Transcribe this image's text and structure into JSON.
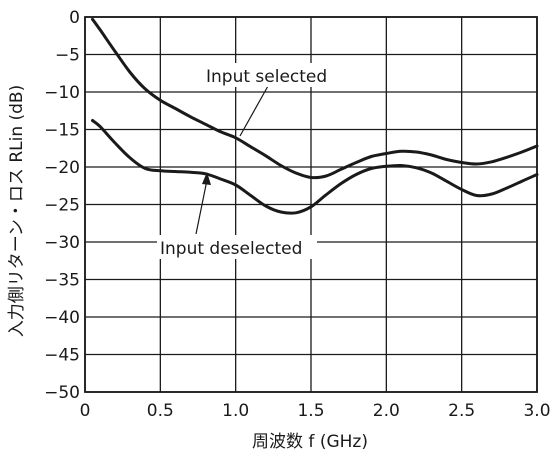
{
  "chart_data": {
    "type": "line",
    "xlabel": "周波数 f (GHz)",
    "ylabel": "入力側リターン・ロス RLin (dB)",
    "xlim": [
      0,
      3.0
    ],
    "ylim": [
      -50,
      0
    ],
    "xticks": [
      "0",
      "0.5",
      "1.0",
      "1.5",
      "2.0",
      "2.5",
      "3.0"
    ],
    "yticks": [
      "0",
      "−5",
      "−10",
      "−15",
      "−20",
      "−25",
      "−30",
      "−35",
      "−40",
      "−45",
      "−50"
    ],
    "grid": true,
    "series": [
      {
        "name": "Input selected",
        "x": [
          0.05,
          0.1,
          0.2,
          0.3,
          0.4,
          0.5,
          0.6,
          0.7,
          0.8,
          0.9,
          1.0,
          1.1,
          1.2,
          1.3,
          1.4,
          1.5,
          1.6,
          1.7,
          1.8,
          1.9,
          2.0,
          2.1,
          2.2,
          2.3,
          2.4,
          2.5,
          2.6,
          2.7,
          2.8,
          2.9,
          3.0
        ],
        "y": [
          -0.3,
          -1.7,
          -4.6,
          -7.4,
          -9.6,
          -11.1,
          -12.2,
          -13.3,
          -14.3,
          -15.3,
          -16.1,
          -17.3,
          -18.5,
          -19.8,
          -20.8,
          -21.4,
          -21.2,
          -20.3,
          -19.4,
          -18.6,
          -18.2,
          -17.9,
          -18.0,
          -18.4,
          -19.0,
          -19.4,
          -19.6,
          -19.3,
          -18.7,
          -18.0,
          -17.2
        ]
      },
      {
        "name": "Input deselected",
        "x": [
          0.05,
          0.1,
          0.2,
          0.3,
          0.4,
          0.5,
          0.6,
          0.7,
          0.8,
          0.9,
          1.0,
          1.1,
          1.2,
          1.3,
          1.4,
          1.5,
          1.6,
          1.7,
          1.8,
          1.9,
          2.0,
          2.1,
          2.2,
          2.3,
          2.4,
          2.5,
          2.6,
          2.7,
          2.8,
          2.9,
          3.0
        ],
        "y": [
          -13.8,
          -14.6,
          -16.8,
          -18.8,
          -20.2,
          -20.5,
          -20.6,
          -20.7,
          -20.9,
          -21.6,
          -22.4,
          -23.8,
          -25.2,
          -26.0,
          -26.1,
          -25.3,
          -23.7,
          -22.2,
          -21.0,
          -20.2,
          -19.9,
          -19.8,
          -20.1,
          -20.8,
          -21.9,
          -23.0,
          -23.8,
          -23.6,
          -22.8,
          -21.9,
          -21.0
        ]
      }
    ],
    "annotations": [
      {
        "text": "Input selected"
      },
      {
        "text": "Input deselected"
      }
    ]
  }
}
